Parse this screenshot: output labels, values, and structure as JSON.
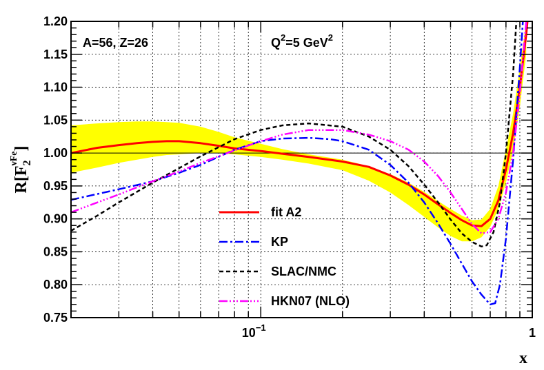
{
  "chart_data": {
    "type": "line",
    "xscale": "log",
    "xlim": [
      0.02,
      1.0
    ],
    "ylim": [
      0.75,
      1.2
    ],
    "grid": true,
    "legend_position": "center-bottom",
    "xlabel": "x",
    "ylabel": {
      "main": "R[F",
      "sub": "2",
      "sup": "νFe",
      "close": "]"
    },
    "x_tick_labels": [
      {
        "x": 0.1,
        "base": "10",
        "exp": "−1"
      },
      {
        "x": 1.0,
        "base": "1",
        "exp": ""
      }
    ],
    "y_ticks": [
      0.75,
      0.8,
      0.85,
      0.9,
      0.95,
      1.0,
      1.05,
      1.1,
      1.15,
      1.2
    ],
    "y_tick_labels": [
      "0.75",
      "0.80",
      "0.85",
      "0.90",
      "0.95",
      "1.00",
      "1.05",
      "1.10",
      "1.15",
      "1.20"
    ],
    "annotations": {
      "nucleus": "A=56, Z=26",
      "q2": {
        "pre": "Q",
        "sup": "2",
        "mid": "=5 GeV",
        "sup2": "2"
      }
    },
    "reference_line": 1.0,
    "band": {
      "color": "#ffff00",
      "x": [
        0.02,
        0.025,
        0.03,
        0.035,
        0.04,
        0.045,
        0.05,
        0.06,
        0.07,
        0.08,
        0.1,
        0.12,
        0.15,
        0.2,
        0.25,
        0.3,
        0.35,
        0.4,
        0.45,
        0.5,
        0.55,
        0.6,
        0.65,
        0.7,
        0.75,
        0.8,
        0.85,
        0.9,
        0.95
      ],
      "upper": [
        1.042,
        1.045,
        1.047,
        1.048,
        1.048,
        1.047,
        1.046,
        1.04,
        1.032,
        1.024,
        1.014,
        1.006,
        0.998,
        0.99,
        0.98,
        0.968,
        0.955,
        0.941,
        0.927,
        0.915,
        0.905,
        0.898,
        0.899,
        0.915,
        0.95,
        1.005,
        1.06,
        1.13,
        1.2
      ],
      "lower": [
        0.97,
        0.978,
        0.985,
        0.99,
        0.994,
        0.997,
        0.998,
        1.0,
        1.0,
        0.998,
        0.994,
        0.99,
        0.984,
        0.974,
        0.958,
        0.94,
        0.921,
        0.903,
        0.887,
        0.874,
        0.866,
        0.866,
        0.872,
        0.888,
        0.915,
        0.955,
        1.005,
        1.07,
        1.15
      ]
    },
    "series": [
      {
        "name": "fit A2",
        "color": "#ff0000",
        "dash": "solid",
        "x": [
          0.02,
          0.025,
          0.03,
          0.035,
          0.04,
          0.045,
          0.05,
          0.06,
          0.07,
          0.08,
          0.1,
          0.12,
          0.15,
          0.2,
          0.25,
          0.3,
          0.35,
          0.4,
          0.45,
          0.5,
          0.55,
          0.6,
          0.65,
          0.7,
          0.75,
          0.8,
          0.85,
          0.9,
          0.95,
          0.97
        ],
        "values": [
          1.0,
          1.008,
          1.012,
          1.015,
          1.017,
          1.018,
          1.018,
          1.015,
          1.011,
          1.007,
          1.003,
          0.999,
          0.994,
          0.987,
          0.979,
          0.966,
          0.952,
          0.937,
          0.922,
          0.909,
          0.898,
          0.89,
          0.889,
          0.9,
          0.928,
          0.975,
          1.03,
          1.1,
          1.18,
          1.22
        ]
      },
      {
        "name": "KP",
        "color": "#0000ff",
        "dash": "12,4,3,4",
        "x": [
          0.02,
          0.03,
          0.04,
          0.05,
          0.06,
          0.08,
          0.1,
          0.12,
          0.15,
          0.18,
          0.2,
          0.25,
          0.3,
          0.35,
          0.4,
          0.45,
          0.5,
          0.55,
          0.6,
          0.65,
          0.7,
          0.73,
          0.76,
          0.8,
          0.85,
          0.9,
          0.93
        ],
        "values": [
          0.929,
          0.945,
          0.957,
          0.97,
          0.982,
          1.005,
          1.018,
          1.022,
          1.023,
          1.021,
          1.018,
          1.005,
          0.982,
          0.955,
          0.925,
          0.893,
          0.862,
          0.832,
          0.805,
          0.785,
          0.77,
          0.772,
          0.8,
          0.87,
          0.99,
          1.13,
          1.22
        ]
      },
      {
        "name": "SLAC/NMC",
        "color": "#000000",
        "dash": "6,4",
        "x": [
          0.02,
          0.025,
          0.03,
          0.04,
          0.05,
          0.06,
          0.08,
          0.1,
          0.12,
          0.15,
          0.2,
          0.25,
          0.3,
          0.35,
          0.4,
          0.45,
          0.5,
          0.55,
          0.6,
          0.65,
          0.68,
          0.72,
          0.76,
          0.8,
          0.85,
          0.88
        ],
        "values": [
          0.882,
          0.905,
          0.925,
          0.955,
          0.977,
          0.995,
          1.021,
          1.035,
          1.042,
          1.045,
          1.04,
          1.025,
          1.005,
          0.98,
          0.952,
          0.925,
          0.899,
          0.878,
          0.865,
          0.858,
          0.86,
          0.88,
          0.925,
          1.0,
          1.12,
          1.22
        ]
      },
      {
        "name": "HKN07 (NLO)",
        "color": "#ff00ff",
        "dash": "12,3,2,3,2,3,2,3",
        "x": [
          0.02,
          0.025,
          0.03,
          0.035,
          0.04,
          0.05,
          0.06,
          0.08,
          0.1,
          0.12,
          0.15,
          0.2,
          0.25,
          0.3,
          0.35,
          0.4,
          0.45,
          0.5,
          0.55,
          0.6,
          0.65,
          0.7,
          0.75,
          0.8,
          0.85,
          0.9,
          0.95
        ],
        "values": [
          0.91,
          0.925,
          0.937,
          0.948,
          0.957,
          0.972,
          0.985,
          1.004,
          1.018,
          1.028,
          1.035,
          1.035,
          1.028,
          1.018,
          1.005,
          0.987,
          0.965,
          0.94,
          0.915,
          0.892,
          0.878,
          0.88,
          0.9,
          0.94,
          1.0,
          1.09,
          1.2
        ]
      }
    ]
  }
}
